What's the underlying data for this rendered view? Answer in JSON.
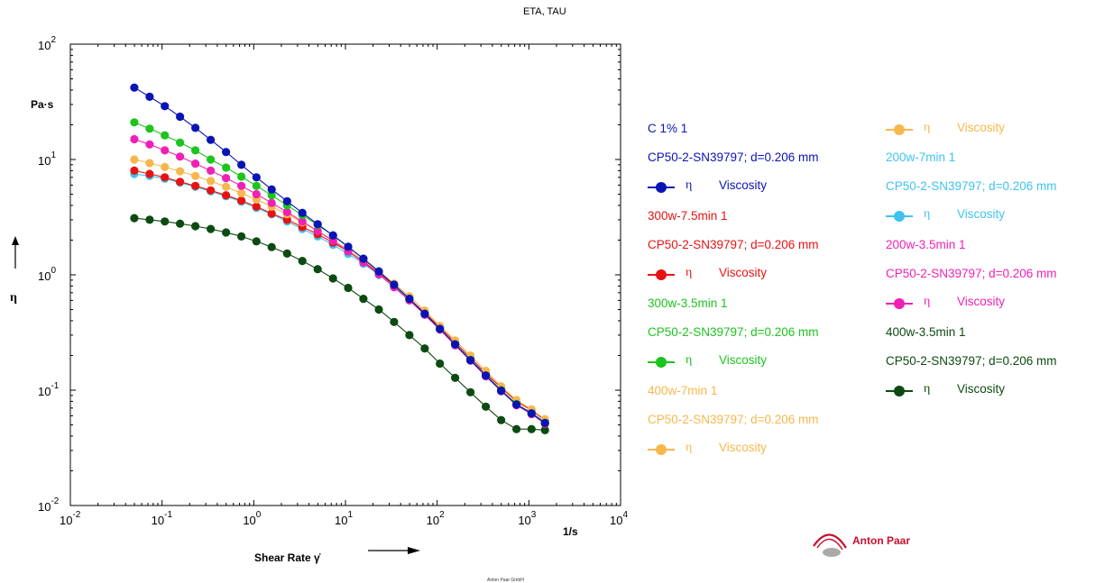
{
  "title": "ETA, TAU",
  "footer": "Anton Paar GmbH",
  "logo": {
    "text": "Anton Paar",
    "color": "#c8102e"
  },
  "chart_data": {
    "type": "scatter",
    "title": "ETA, TAU",
    "x_scale": "log",
    "y_scale": "log",
    "xlim": [
      0.01,
      10000
    ],
    "ylim": [
      0.01,
      100
    ],
    "xlabel": "Shear Rate γ̇",
    "xunit": "1/s",
    "ylabel": "η",
    "yunit": "Pa·s",
    "x_ticks": [
      {
        "base": "10",
        "exp": "-2"
      },
      {
        "base": "10",
        "exp": "-1"
      },
      {
        "base": "10",
        "exp": "0"
      },
      {
        "base": "10",
        "exp": "1"
      },
      {
        "base": "10",
        "exp": "2"
      },
      {
        "base": "10",
        "exp": "3"
      },
      {
        "base": "10",
        "exp": "4"
      }
    ],
    "y_ticks": [
      {
        "base": "10",
        "exp": "-2"
      },
      {
        "base": "10",
        "exp": "-1"
      },
      {
        "base": "10",
        "exp": "0"
      },
      {
        "base": "10",
        "exp": "1"
      },
      {
        "base": "10",
        "exp": "2"
      }
    ],
    "legend_position": "right",
    "grid": false,
    "x": [
      0.0498,
      0.0732,
      0.107,
      0.157,
      0.231,
      0.339,
      0.498,
      0.732,
      1.07,
      1.57,
      2.31,
      3.39,
      4.98,
      7.32,
      10.7,
      15.7,
      23.1,
      33.9,
      49.8,
      73.2,
      107,
      157,
      231,
      339,
      498,
      732,
      1070,
      1500
    ],
    "series": [
      {
        "sample": "C 1% 1",
        "geometry": "CP50-2-SN39797; d=0.206 mm",
        "symbol": "η",
        "name": "Viscosity",
        "color": "#0a14b4",
        "values": [
          42,
          35,
          29,
          23.5,
          18.8,
          14.8,
          11.6,
          9.0,
          7.0,
          5.5,
          4.35,
          3.45,
          2.75,
          2.2,
          1.75,
          1.38,
          1.07,
          0.82,
          0.62,
          0.46,
          0.34,
          0.25,
          0.182,
          0.134,
          0.099,
          0.075,
          0.063,
          0.052
        ]
      },
      {
        "sample": "300w-7.5min 1",
        "geometry": "CP50-2-SN39797; d=0.206 mm",
        "symbol": "η",
        "name": "Viscosity",
        "color": "#e81212",
        "values": [
          8.0,
          7.5,
          7.0,
          6.4,
          5.9,
          5.4,
          4.9,
          4.4,
          3.9,
          3.4,
          3.0,
          2.6,
          2.25,
          1.9,
          1.6,
          1.3,
          1.04,
          0.81,
          0.62,
          0.47,
          0.35,
          0.26,
          0.19,
          0.14,
          0.105,
          0.08,
          0.067,
          0.055
        ]
      },
      {
        "sample": "300w-3.5min 1",
        "geometry": "CP50-2-SN39797; d=0.206 mm",
        "symbol": "η",
        "name": "Viscosity",
        "color": "#1cc41c",
        "values": [
          21,
          18.5,
          16.2,
          14,
          12,
          10,
          8.5,
          7.1,
          5.9,
          4.9,
          4.0,
          3.3,
          2.7,
          2.2,
          1.75,
          1.38,
          1.07,
          0.82,
          0.62,
          0.46,
          0.34,
          0.25,
          0.183,
          0.134,
          0.1,
          0.076,
          0.063,
          0.052
        ]
      },
      {
        "sample": "400w-7min 1",
        "geometry": "CP50-2-SN39797; d=0.206 mm",
        "symbol": "η",
        "name": "Viscosity",
        "color": "#f7b74c",
        "values": [
          10,
          9.3,
          8.6,
          7.9,
          7.2,
          6.5,
          5.8,
          5.1,
          4.5,
          3.9,
          3.35,
          2.85,
          2.4,
          2.0,
          1.65,
          1.34,
          1.07,
          0.84,
          0.65,
          0.49,
          0.36,
          0.27,
          0.2,
          0.147,
          0.108,
          0.082,
          0.068,
          0.056
        ]
      },
      {
        "sample": "200w-7min 1",
        "geometry": "CP50-2-SN39797; d=0.206 mm",
        "symbol": "η",
        "name": "Viscosity",
        "color": "#3ec3f0",
        "values": [
          7.5,
          7.2,
          6.8,
          6.3,
          5.8,
          5.3,
          4.8,
          4.3,
          3.8,
          3.35,
          2.9,
          2.5,
          2.15,
          1.82,
          1.52,
          1.25,
          1.0,
          0.79,
          0.61,
          0.46,
          0.34,
          0.25,
          0.185,
          0.136,
          0.1,
          0.076,
          0.064,
          0.053
        ]
      },
      {
        "sample": "200w-3.5min 1",
        "geometry": "CP50-2-SN39797; d=0.206 mm",
        "symbol": "η",
        "name": "Viscosity",
        "color": "#f020b4",
        "values": [
          15,
          13.5,
          12,
          10.6,
          9.2,
          8.0,
          6.9,
          5.9,
          5.0,
          4.2,
          3.5,
          2.9,
          2.4,
          1.97,
          1.6,
          1.28,
          1.01,
          0.78,
          0.6,
          0.45,
          0.335,
          0.245,
          0.18,
          0.132,
          0.098,
          0.074,
          0.062,
          0.051
        ]
      },
      {
        "sample": "400w-3.5min 1",
        "geometry": "CP50-2-SN39797; d=0.206 mm",
        "symbol": "η",
        "name": "Viscosity",
        "color": "#0d4a12",
        "values": [
          3.1,
          3.0,
          2.9,
          2.78,
          2.64,
          2.5,
          2.33,
          2.15,
          1.95,
          1.74,
          1.53,
          1.32,
          1.12,
          0.93,
          0.77,
          0.62,
          0.5,
          0.39,
          0.3,
          0.23,
          0.17,
          0.128,
          0.096,
          0.072,
          0.055,
          0.046,
          0.046,
          0.045
        ]
      }
    ]
  }
}
